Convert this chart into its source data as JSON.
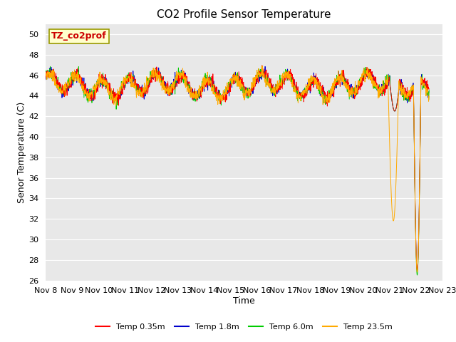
{
  "title": "CO2 Profile Sensor Temperature",
  "xlabel": "Time",
  "ylabel": "Senor Temperature (C)",
  "ylim": [
    26,
    51
  ],
  "yticks": [
    26,
    28,
    30,
    32,
    34,
    36,
    38,
    40,
    42,
    44,
    46,
    48,
    50
  ],
  "x_labels": [
    "Nov 8",
    "Nov 9",
    "Nov 10",
    "Nov 11",
    "Nov 12",
    "Nov 13",
    "Nov 14",
    "Nov 15",
    "Nov 16",
    "Nov 17",
    "Nov 18",
    "Nov 19",
    "Nov 20",
    "Nov 21",
    "Nov 22",
    "Nov 23"
  ],
  "xlim": [
    0,
    15
  ],
  "num_points": 1500,
  "annotation_label": "TZ_co2prof",
  "annotation_color": "#cc0000",
  "annotation_bg": "#ffffcc",
  "annotation_border": "#999900",
  "legend_entries": [
    "Temp 0.35m",
    "Temp 1.8m",
    "Temp 6.0m",
    "Temp 23.5m"
  ],
  "line_colors": [
    "#ff0000",
    "#0000cc",
    "#00cc00",
    "#ffaa00"
  ],
  "fig_bg_color": "#ffffff",
  "plot_bg_color": "#e8e8e8",
  "grid_color": "#ffffff",
  "title_fontsize": 11,
  "axis_label_fontsize": 9,
  "tick_fontsize": 8,
  "legend_fontsize": 8
}
